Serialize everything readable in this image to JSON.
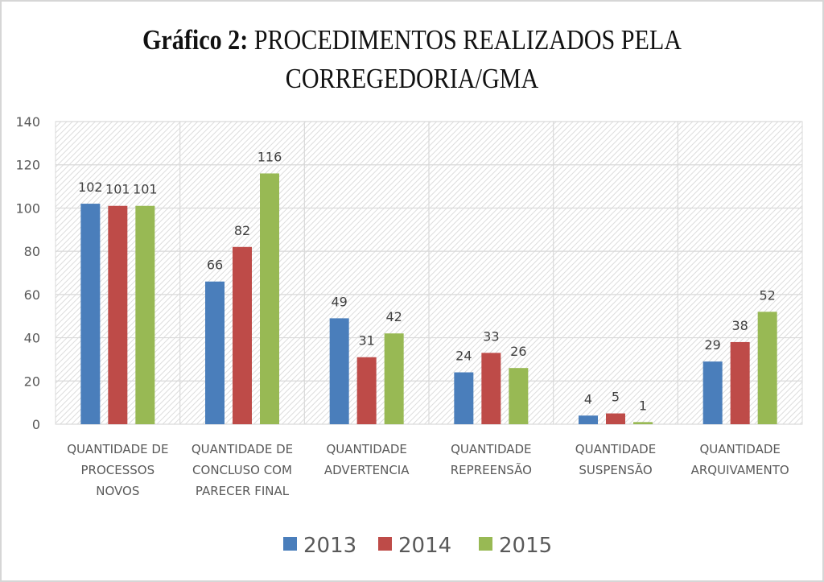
{
  "chart_data": {
    "type": "bar",
    "title_bold": "Gráfico 2:",
    "title_rest_line1": "PROCEDIMENTOS REALIZADOS PELA",
    "title_line2": "CORREGEDORIA/GMA",
    "title": "Gráfico 2: PROCEDIMENTOS REALIZADOS PELA CORREGEDORIA/GMA",
    "xlabel": "",
    "ylabel": "",
    "ylim": [
      0,
      140
    ],
    "yticks": [
      0,
      20,
      40,
      60,
      80,
      100,
      120,
      140
    ],
    "grid": true,
    "legend_position": "bottom",
    "categories": [
      [
        "QUANTIDADE DE",
        "PROCESSOS",
        "NOVOS"
      ],
      [
        "QUANTIDADE DE",
        "CONCLUSO COM",
        "PARECER FINAL"
      ],
      [
        "QUANTIDADE",
        "ADVERTENCIA"
      ],
      [
        "QUANTIDADE",
        "REPREENSÃO"
      ],
      [
        "QUANTIDADE",
        "SUSPENSÃO"
      ],
      [
        "QUANTIDADE",
        "ARQUIVAMENTO"
      ]
    ],
    "series": [
      {
        "name": "2013",
        "color": "#4a7ebb",
        "values": [
          102,
          66,
          49,
          24,
          4,
          29
        ]
      },
      {
        "name": "2014",
        "color": "#be4b48",
        "values": [
          101,
          82,
          31,
          33,
          5,
          38
        ]
      },
      {
        "name": "2015",
        "color": "#98b954",
        "values": [
          101,
          116,
          42,
          26,
          1,
          52
        ]
      }
    ]
  }
}
